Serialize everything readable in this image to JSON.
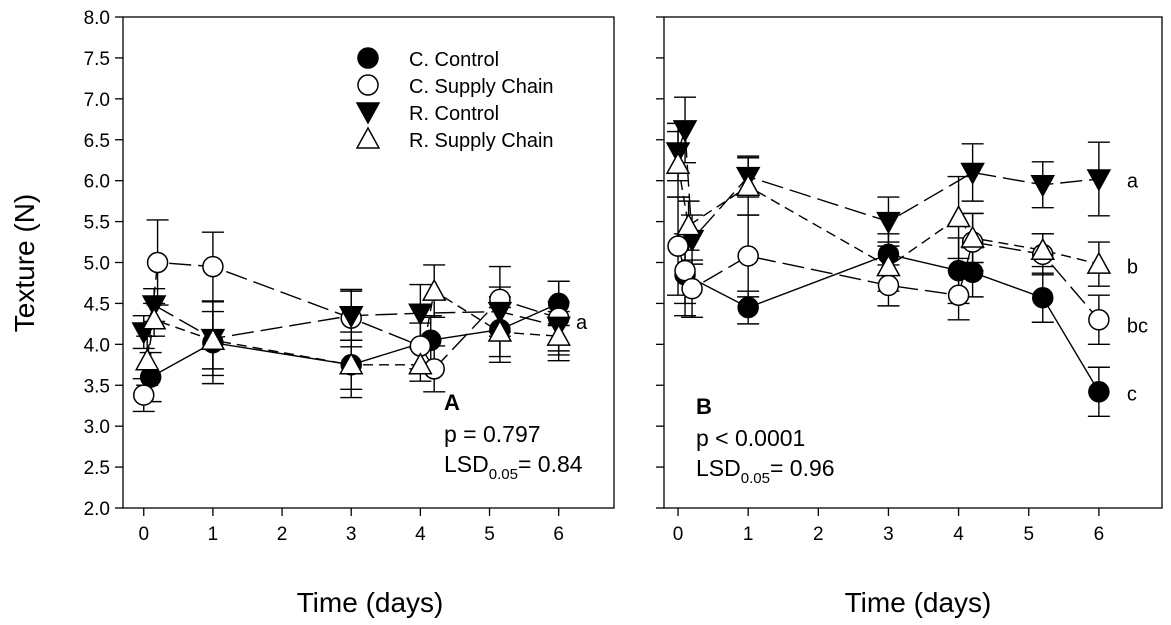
{
  "y_axis_label": "Texture (N)",
  "chart_data": [
    {
      "type": "line",
      "panel_label": "A",
      "stats": {
        "p_text": "p = 0.797",
        "lsd_prefix": "LSD",
        "lsd_sub": "0.05",
        "lsd_suffix": "= 0.84"
      },
      "xlabel": "Time (days)",
      "ylabel": "Texture (N)",
      "xlim": [
        -0.3,
        6.8
      ],
      "ylim": [
        2.0,
        8.0
      ],
      "x_ticks": [
        "0",
        "1",
        "2",
        "3",
        "4",
        "5",
        "6"
      ],
      "y_ticks": [
        "2.0",
        "2.5",
        "3.0",
        "3.5",
        "4.0",
        "4.5",
        "5.0",
        "5.5",
        "6.0",
        "6.5",
        "7.0",
        "7.5",
        "8.0"
      ],
      "legend": {
        "placement": "top-right",
        "entries": [
          "C. Control",
          "C. Supply Chain",
          "R. Control",
          "R. Supply Chain"
        ]
      },
      "series": [
        {
          "name": "C. Control",
          "marker": "filled-circle",
          "dash": "solid",
          "points": [
            {
              "x": 0.1,
              "y": 3.6,
              "err": 0.3
            },
            {
              "x": 1.0,
              "y": 4.02,
              "err": 0.5
            },
            {
              "x": 3.0,
              "y": 3.75,
              "err": 0.4
            },
            {
              "x": 4.15,
              "y": 4.05,
              "err": 0.3
            },
            {
              "x": 5.15,
              "y": 4.18,
              "err": 0.4
            },
            {
              "x": 6.0,
              "y": 4.5,
              "err": 0.27
            }
          ]
        },
        {
          "name": "C. Supply Chain",
          "marker": "open-circle",
          "dash": "long-dash",
          "points": [
            {
              "x": 0.0,
              "y": 3.38,
              "err": 0.2
            },
            {
              "x": 0.2,
              "y": 5.0,
              "err": 0.52
            },
            {
              "x": 1.0,
              "y": 4.95,
              "err": 0.42
            },
            {
              "x": 3.0,
              "y": 4.32,
              "err": 0.35
            },
            {
              "x": 4.0,
              "y": 3.98,
              "err": 0.28
            },
            {
              "x": 4.2,
              "y": 3.7,
              "err": 0.28
            },
            {
              "x": 5.15,
              "y": 4.55,
              "err": 0.4
            },
            {
              "x": 6.0,
              "y": 4.32,
              "err": 0.45
            }
          ]
        },
        {
          "name": "R. Control",
          "marker": "filled-triangle-down",
          "dash": "long-dash",
          "points": [
            {
              "x": 0.0,
              "y": 4.15,
              "err": 0.2
            },
            {
              "x": 0.15,
              "y": 4.48,
              "err": 0.2
            },
            {
              "x": 1.0,
              "y": 4.07,
              "err": 0.45
            },
            {
              "x": 3.0,
              "y": 4.35,
              "err": 0.3
            },
            {
              "x": 4.0,
              "y": 4.38,
              "err": 0.35
            },
            {
              "x": 5.15,
              "y": 4.4,
              "err": 0.3
            },
            {
              "x": 6.0,
              "y": 4.22,
              "err": 0.3
            }
          ]
        },
        {
          "name": "R. Supply Chain",
          "marker": "open-triangle-up",
          "dash": "short-dash",
          "points": [
            {
              "x": 0.05,
              "y": 3.8,
              "err": 0.3
            },
            {
              "x": 0.15,
              "y": 4.3,
              "err": 0.2
            },
            {
              "x": 1.0,
              "y": 4.05,
              "err": 0.35
            },
            {
              "x": 3.0,
              "y": 3.75,
              "err": 0.3
            },
            {
              "x": 4.0,
              "y": 3.75,
              "err": 0.2
            },
            {
              "x": 4.2,
              "y": 4.65,
              "err": 0.32
            },
            {
              "x": 5.15,
              "y": 4.15,
              "err": 0.3
            },
            {
              "x": 6.0,
              "y": 4.1,
              "err": 0.3
            }
          ]
        }
      ],
      "group_labels": [
        {
          "text": "a",
          "x": 6.25,
          "y": 4.27
        }
      ]
    },
    {
      "type": "line",
      "panel_label": "B",
      "stats": {
        "p_text": "p < 0.0001",
        "lsd_prefix": "LSD",
        "lsd_sub": "0.05",
        "lsd_suffix": "= 0.96"
      },
      "xlabel": "Time (days)",
      "ylabel": "",
      "xlim": [
        -0.2,
        6.9
      ],
      "ylim": [
        2.0,
        8.0
      ],
      "x_ticks": [
        "0",
        "1",
        "2",
        "3",
        "4",
        "5",
        "6"
      ],
      "y_ticks": [
        "2.0",
        "2.5",
        "3.0",
        "3.5",
        "4.0",
        "4.5",
        "5.0",
        "5.5",
        "6.0",
        "6.5",
        "7.0",
        "7.5",
        "8.0"
      ],
      "series": [
        {
          "name": "C. Control",
          "marker": "filled-circle",
          "dash": "solid",
          "points": [
            {
              "x": 0.1,
              "y": 4.85,
              "err": 0.5
            },
            {
              "x": 1.0,
              "y": 4.45,
              "err": 0.2
            },
            {
              "x": 3.0,
              "y": 5.1,
              "err": 0.25
            },
            {
              "x": 4.0,
              "y": 4.9,
              "err": 0.4
            },
            {
              "x": 4.2,
              "y": 4.88,
              "err": 0.3
            },
            {
              "x": 5.2,
              "y": 4.57,
              "err": 0.3
            },
            {
              "x": 6.0,
              "y": 3.42,
              "err": 0.3
            }
          ]
        },
        {
          "name": "C. Supply Chain",
          "marker": "open-circle",
          "dash": "long-dash",
          "points": [
            {
              "x": 0.0,
              "y": 5.2,
              "err": 0.6
            },
            {
              "x": 0.1,
              "y": 4.9,
              "err": 0.4
            },
            {
              "x": 0.2,
              "y": 4.68,
              "err": 0.35
            },
            {
              "x": 1.0,
              "y": 5.08,
              "err": 0.5
            },
            {
              "x": 3.0,
              "y": 4.72,
              "err": 0.25
            },
            {
              "x": 4.0,
              "y": 4.6,
              "err": 0.3
            },
            {
              "x": 4.2,
              "y": 5.25,
              "err": 0.35
            },
            {
              "x": 5.2,
              "y": 5.1,
              "err": 0.25
            },
            {
              "x": 6.0,
              "y": 4.3,
              "err": 0.3
            }
          ]
        },
        {
          "name": "R. Control",
          "marker": "filled-triangle-down",
          "dash": "long-dash",
          "points": [
            {
              "x": 0.0,
              "y": 6.35,
              "err": 0.35
            },
            {
              "x": 0.1,
              "y": 6.62,
              "err": 0.4
            },
            {
              "x": 0.2,
              "y": 5.28,
              "err": 0.3
            },
            {
              "x": 1.0,
              "y": 6.05,
              "err": 0.25
            },
            {
              "x": 3.0,
              "y": 5.5,
              "err": 0.3
            },
            {
              "x": 4.2,
              "y": 6.1,
              "err": 0.35
            },
            {
              "x": 5.2,
              "y": 5.95,
              "err": 0.28
            },
            {
              "x": 6.0,
              "y": 6.02,
              "err": 0.45
            }
          ]
        },
        {
          "name": "R. Supply Chain",
          "marker": "open-triangle-up",
          "dash": "short-dash",
          "points": [
            {
              "x": 0.0,
              "y": 6.2,
              "err": 0.4
            },
            {
              "x": 0.15,
              "y": 5.45,
              "err": 0.3
            },
            {
              "x": 1.0,
              "y": 5.93,
              "err": 0.35
            },
            {
              "x": 3.0,
              "y": 4.95,
              "err": 0.3
            },
            {
              "x": 4.0,
              "y": 5.55,
              "err": 0.5
            },
            {
              "x": 4.2,
              "y": 5.3,
              "err": 0.3
            },
            {
              "x": 5.2,
              "y": 5.15,
              "err": 0.2
            },
            {
              "x": 6.0,
              "y": 4.98,
              "err": 0.27
            }
          ]
        }
      ],
      "group_labels": [
        {
          "text": "a",
          "x": 6.4,
          "y": 6.0
        },
        {
          "text": "b",
          "x": 6.4,
          "y": 4.95
        },
        {
          "text": "bc",
          "x": 6.4,
          "y": 4.23
        },
        {
          "text": "c",
          "x": 6.4,
          "y": 3.4
        }
      ]
    }
  ]
}
